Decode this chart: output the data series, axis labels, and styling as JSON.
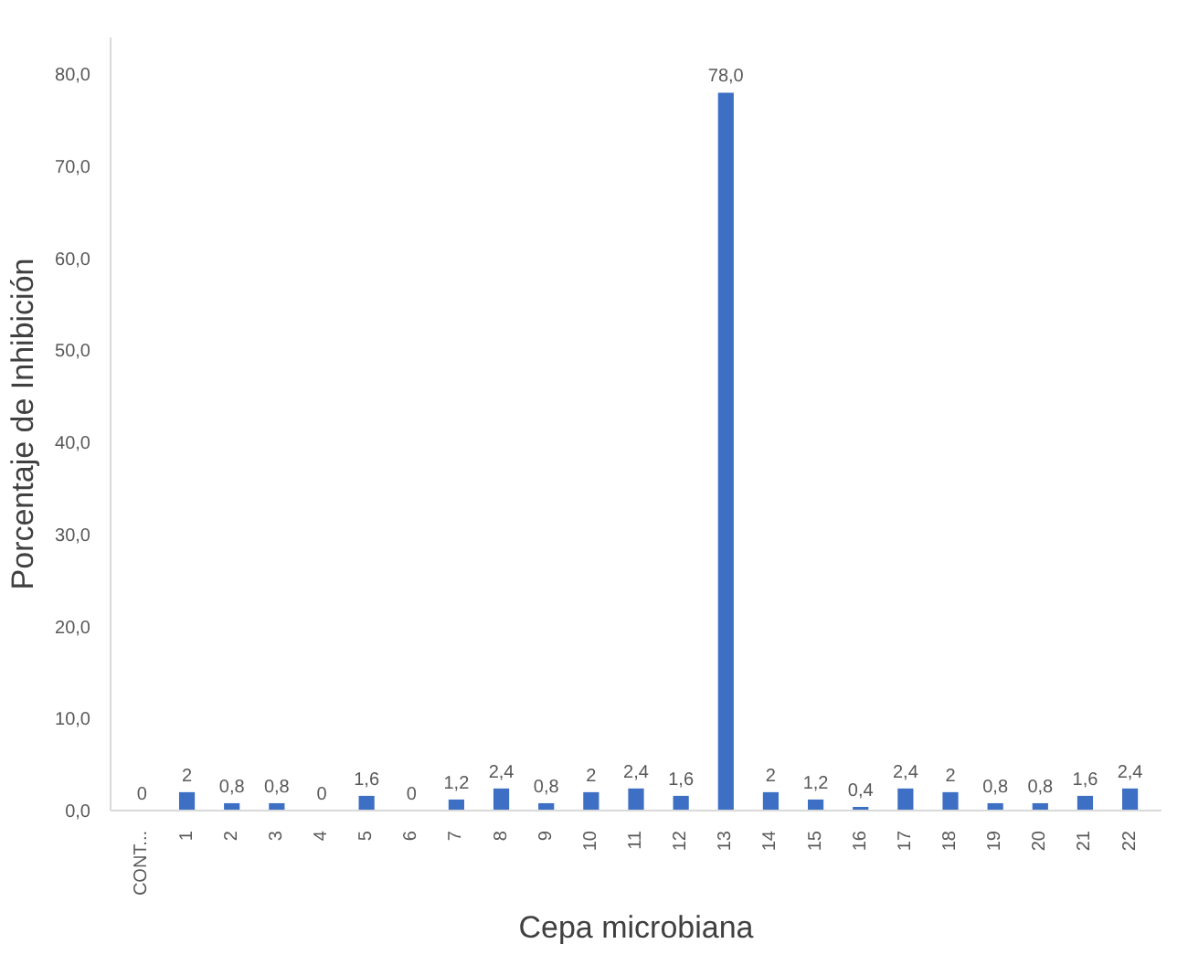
{
  "chart_data": {
    "type": "bar",
    "xlabel": "Cepa microbiana",
    "ylabel": "Porcentaje de Inhibición",
    "categories": [
      "CONT...",
      "1",
      "2",
      "3",
      "4",
      "5",
      "6",
      "7",
      "8",
      "9",
      "10",
      "11",
      "12",
      "13",
      "14",
      "15",
      "16",
      "17",
      "18",
      "19",
      "20",
      "21",
      "22"
    ],
    "values": [
      0,
      2,
      0.8,
      0.8,
      0,
      1.6,
      0,
      1.2,
      2.4,
      0.8,
      2,
      2.4,
      1.6,
      78.0,
      2,
      1.2,
      0.4,
      2.4,
      2,
      0.8,
      0.8,
      1.6,
      2.4
    ],
    "value_labels": [
      "0",
      "2",
      "0,8",
      "0,8",
      "0",
      "1,6",
      "0",
      "1,2",
      "2,4",
      "0,8",
      "2",
      "2,4",
      "1,6",
      "78,0",
      "2",
      "1,2",
      "0,4",
      "2,4",
      "2",
      "0,8",
      "0,8",
      "1,6",
      "2,4"
    ],
    "color": "#3d6fc4",
    "ylim": [
      0,
      84
    ],
    "yticks": [
      {
        "value": 0,
        "label": "0,0"
      },
      {
        "value": 10,
        "label": "10,0"
      },
      {
        "value": 20,
        "label": "20,0"
      },
      {
        "value": 30,
        "label": "30,0"
      },
      {
        "value": 40,
        "label": "40,0"
      },
      {
        "value": 50,
        "label": "50,0"
      },
      {
        "value": 60,
        "label": "60,0"
      },
      {
        "value": 70,
        "label": "70,0"
      },
      {
        "value": 80,
        "label": "80,0"
      }
    ],
    "grid": false
  }
}
